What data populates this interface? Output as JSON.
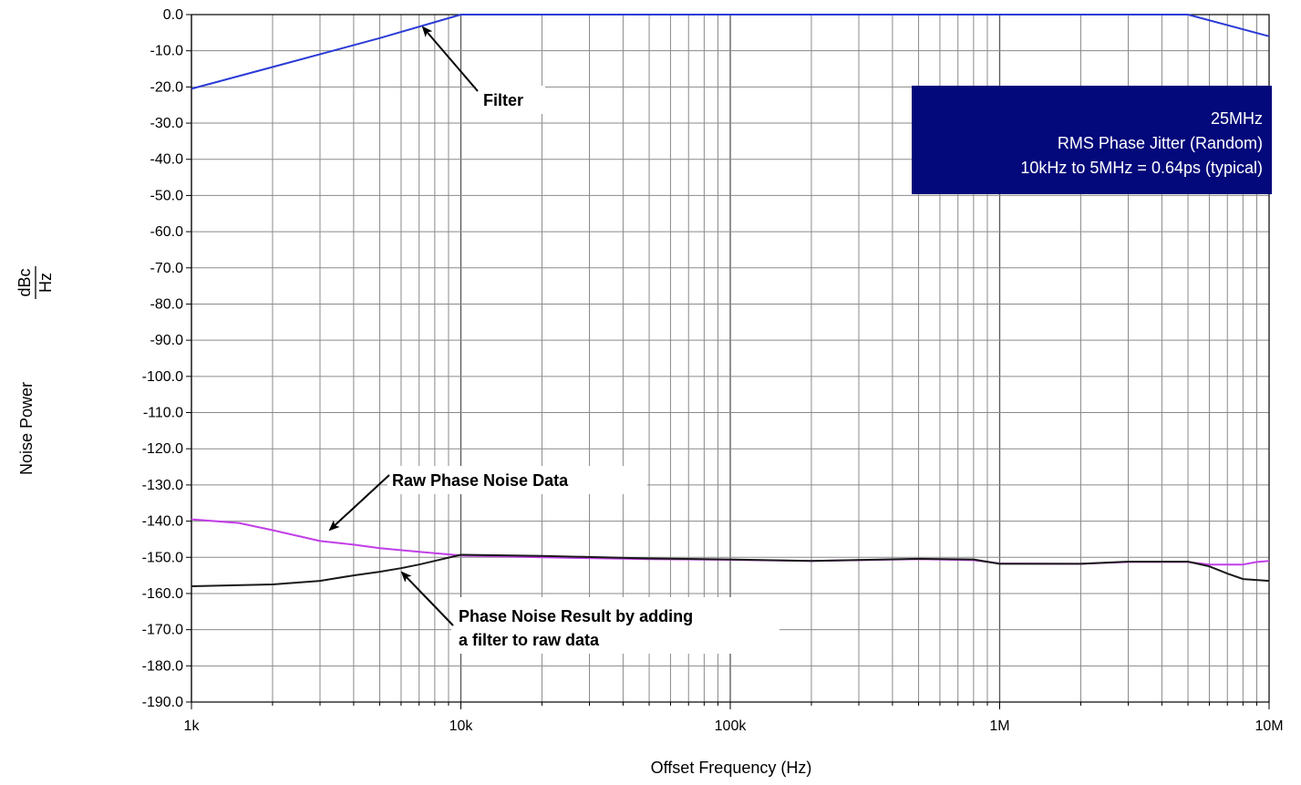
{
  "chart_data": {
    "type": "line",
    "xlabel": "Offset Frequency (Hz)",
    "ylabel": "Noise Power",
    "ylabel_unit_num": "dBc",
    "ylabel_unit_den": "Hz",
    "x_scale": "log",
    "xlim": [
      1000,
      10000000
    ],
    "ylim": [
      -190,
      0
    ],
    "grid": true,
    "x_ticks": [
      {
        "value": 1000,
        "label": "1k"
      },
      {
        "value": 10000,
        "label": "10k"
      },
      {
        "value": 100000,
        "label": "100k"
      },
      {
        "value": 1000000,
        "label": "1M"
      },
      {
        "value": 10000000,
        "label": "10M"
      }
    ],
    "y_ticks": [
      {
        "value": 0,
        "label": "0.0"
      },
      {
        "value": -10,
        "label": "-10.0"
      },
      {
        "value": -20,
        "label": "-20.0"
      },
      {
        "value": -30,
        "label": "-30.0"
      },
      {
        "value": -40,
        "label": "-40.0"
      },
      {
        "value": -50,
        "label": "-50.0"
      },
      {
        "value": -60,
        "label": "-60.0"
      },
      {
        "value": -70,
        "label": "-70.0"
      },
      {
        "value": -80,
        "label": "-80.0"
      },
      {
        "value": -90,
        "label": "-90.0"
      },
      {
        "value": -100,
        "label": "-100.0"
      },
      {
        "value": -110,
        "label": "-110.0"
      },
      {
        "value": -120,
        "label": "-120.0"
      },
      {
        "value": -130,
        "label": "-130.0"
      },
      {
        "value": -140,
        "label": "-140.0"
      },
      {
        "value": -150,
        "label": "-150.0"
      },
      {
        "value": -160,
        "label": "-160.0"
      },
      {
        "value": -170,
        "label": "-170.0"
      },
      {
        "value": -180,
        "label": "-180.0"
      },
      {
        "value": -190,
        "label": "-190.0"
      }
    ],
    "series": [
      {
        "id": "filter",
        "color": "#2a3bd6",
        "points": [
          [
            1000,
            -20.5
          ],
          [
            2000,
            -14.5
          ],
          [
            5000,
            -6.5
          ],
          [
            10000,
            0
          ],
          [
            5000000,
            0
          ],
          [
            10000000,
            -6
          ]
        ]
      },
      {
        "id": "raw",
        "color": "#c23ee8",
        "points": [
          [
            1000,
            -139.5
          ],
          [
            1500,
            -140.5
          ],
          [
            2000,
            -142.5
          ],
          [
            3000,
            -145.5
          ],
          [
            4000,
            -146.5
          ],
          [
            5000,
            -147.5
          ],
          [
            7000,
            -148.5
          ],
          [
            10000,
            -149.5
          ],
          [
            20000,
            -150
          ],
          [
            50000,
            -150.5
          ],
          [
            100000,
            -150.7
          ],
          [
            200000,
            -151
          ],
          [
            500000,
            -150.5
          ],
          [
            800000,
            -150.8
          ],
          [
            1000000,
            -151.7
          ],
          [
            2000000,
            -151.8
          ],
          [
            3000000,
            -151.3
          ],
          [
            5000000,
            -151.3
          ],
          [
            6000000,
            -152
          ],
          [
            8000000,
            -152
          ],
          [
            9000000,
            -151.3
          ],
          [
            10000000,
            -151
          ]
        ]
      },
      {
        "id": "result",
        "color": "#1a1a1a",
        "points": [
          [
            1000,
            -158
          ],
          [
            2000,
            -157.5
          ],
          [
            3000,
            -156.5
          ],
          [
            4000,
            -155
          ],
          [
            5000,
            -154
          ],
          [
            6000,
            -153
          ],
          [
            7000,
            -152
          ],
          [
            8000,
            -151
          ],
          [
            10000,
            -149.3
          ],
          [
            20000,
            -149.6
          ],
          [
            50000,
            -150.3
          ],
          [
            100000,
            -150.6
          ],
          [
            200000,
            -151
          ],
          [
            500000,
            -150.4
          ],
          [
            800000,
            -150.6
          ],
          [
            1000000,
            -151.8
          ],
          [
            2000000,
            -151.8
          ],
          [
            3000000,
            -151.2
          ],
          [
            5000000,
            -151.2
          ],
          [
            6000000,
            -152.5
          ],
          [
            7000000,
            -154.5
          ],
          [
            8000000,
            -156
          ],
          [
            10000000,
            -156.5
          ]
        ]
      }
    ],
    "annotations": [
      {
        "text": "Filter",
        "target": [
          6800,
          -2.5
        ]
      },
      {
        "text": "Raw Phase Noise Data",
        "target": [
          3200,
          -145
        ]
      },
      {
        "text": "Phase Noise Result by adding",
        "text2": "a filter to raw data",
        "target": [
          6000,
          -153.5
        ]
      }
    ],
    "info_box": {
      "line1": "25MHz",
      "line2": "RMS Phase Jitter (Random)",
      "line3": "10kHz to 5MHz = 0.64ps (typical)",
      "bg_color": "#03087a"
    }
  }
}
